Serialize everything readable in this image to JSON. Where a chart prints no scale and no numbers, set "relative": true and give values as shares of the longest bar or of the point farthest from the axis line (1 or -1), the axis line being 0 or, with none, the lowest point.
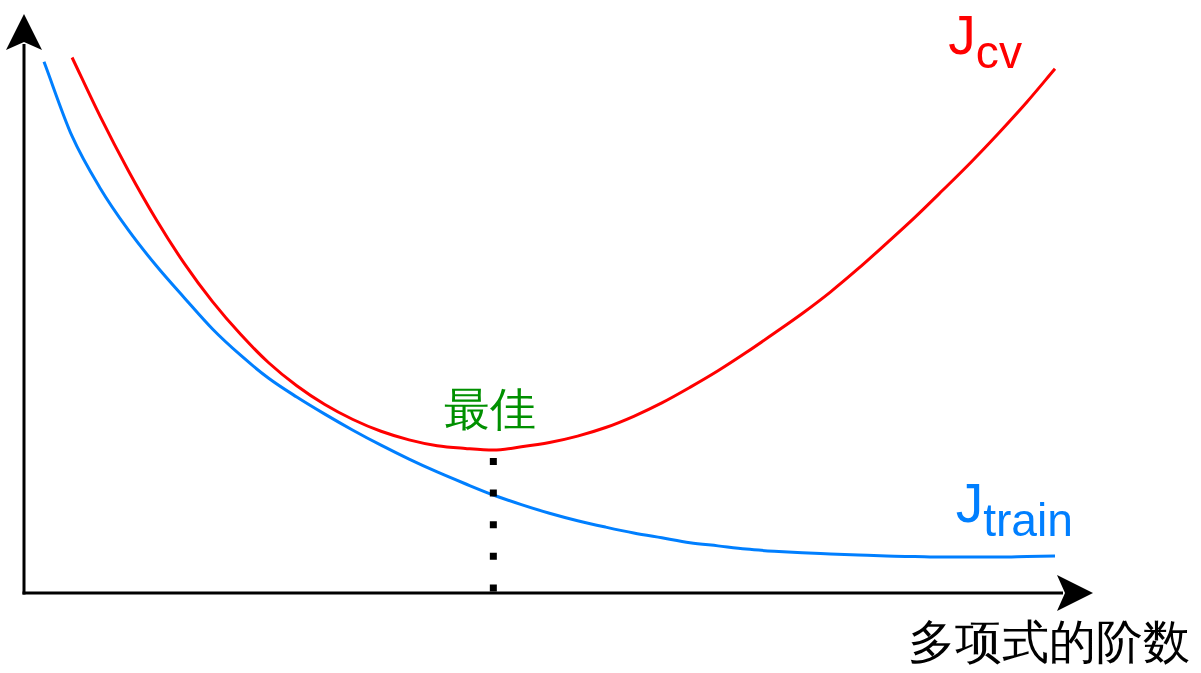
{
  "chart_data": {
    "type": "line",
    "relative": true,
    "xlabel": "多项式的阶数",
    "categories": [
      null,
      null,
      null,
      null,
      null,
      null,
      null,
      null,
      null,
      null,
      null,
      null,
      null,
      null,
      null,
      null,
      null,
      null,
      null,
      null,
      null,
      null,
      null,
      null,
      null,
      null,
      null,
      null,
      null,
      null,
      null,
      null,
      null,
      null,
      null,
      null,
      null
    ],
    "series": [
      {
        "name": "J$_{cv}$",
        "color": "#ff0000",
        "values": [
          null,
          1.0,
          0.89,
          0.789,
          0.697,
          0.615,
          0.544,
          0.483,
          0.43,
          0.387,
          0.352,
          0.324,
          0.302,
          0.286,
          0.275,
          0.27,
          0.267,
          0.273,
          0.281,
          0.293,
          0.309,
          0.33,
          0.355,
          0.384,
          0.415,
          0.449,
          0.485,
          0.522,
          0.562,
          0.606,
          0.653,
          0.701,
          0.752,
          0.804,
          0.859,
          0.917,
          0.979
        ]
      },
      {
        "name": "J$_{train}$",
        "color": "#007fff",
        "values": [
          0.992,
          0.853,
          0.756,
          0.678,
          0.611,
          0.551,
          0.493,
          0.444,
          0.401,
          0.366,
          0.334,
          0.304,
          0.276,
          0.25,
          0.226,
          0.204,
          0.183,
          0.165,
          0.149,
          0.135,
          0.123,
          0.112,
          0.103,
          0.094,
          0.088,
          0.082,
          0.078,
          0.075,
          0.073,
          0.071,
          0.069,
          0.068,
          0.067,
          0.067,
          0.067,
          0.068,
          0.069
        ]
      }
    ],
    "annotations": [
      "最佳"
    ]
  }
}
